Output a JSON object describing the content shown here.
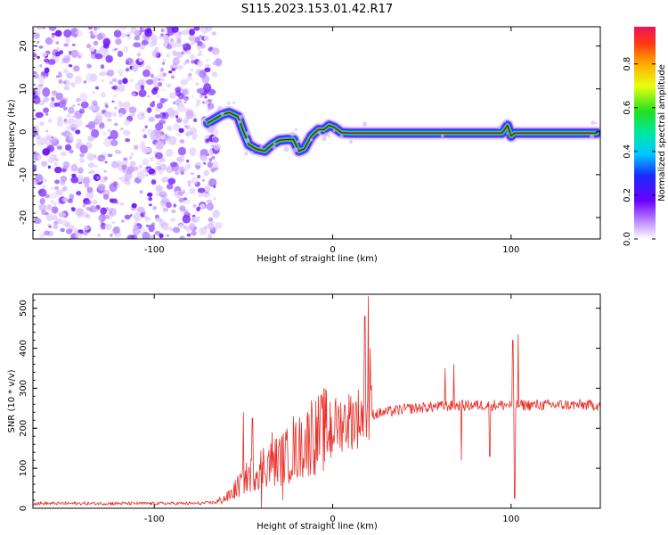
{
  "title": "S115.2023.153.01.42.R17",
  "chart_data": [
    {
      "type": "heatmap",
      "xlabel": "Height of straight line (km)",
      "ylabel": "Frequency (Hz)",
      "xlim": [
        -168,
        150
      ],
      "ylim": [
        -25,
        24.5
      ],
      "xticks": [
        "-100",
        "0",
        "100"
      ],
      "xtick_values": [
        -100,
        0,
        100
      ],
      "yticks": [
        "-20",
        "-10",
        "0",
        "10",
        "20"
      ],
      "ytick_values": [
        -20,
        -10,
        0,
        10,
        20
      ],
      "noise_region": [
        -168,
        -67
      ],
      "doppler_trace": [
        [
          -70,
          2
        ],
        [
          -62,
          4
        ],
        [
          -58,
          4.5
        ],
        [
          -53,
          3.5
        ],
        [
          -50,
          0
        ],
        [
          -47,
          -3
        ],
        [
          -43,
          -4
        ],
        [
          -38,
          -4.5
        ],
        [
          -34,
          -3
        ],
        [
          -30,
          -2
        ],
        [
          -26,
          -1.8
        ],
        [
          -22,
          -1.8
        ],
        [
          -19,
          -4.5
        ],
        [
          -16,
          -4
        ],
        [
          -12,
          -1
        ],
        [
          -8,
          0.5
        ],
        [
          -5,
          0.5
        ],
        [
          -2,
          1.5
        ],
        [
          1,
          1
        ],
        [
          5,
          -0.2
        ],
        [
          10,
          -0.3
        ],
        [
          20,
          -0.3
        ],
        [
          40,
          -0.3
        ],
        [
          60,
          -0.3
        ],
        [
          80,
          -0.3
        ],
        [
          95,
          -0.3
        ],
        [
          98,
          1.5
        ],
        [
          100,
          -1
        ],
        [
          102,
          -0.3
        ],
        [
          120,
          -0.3
        ],
        [
          148,
          -0.3
        ]
      ],
      "colorbar": {
        "label": "Normalized spectral amplitude",
        "ticks": [
          "0.0",
          "0.2",
          "0.4",
          "0.6",
          "0.8"
        ],
        "tick_values": [
          0,
          0.2,
          0.4,
          0.6,
          0.8
        ],
        "range": [
          0,
          0.97
        ]
      }
    },
    {
      "type": "line",
      "xlabel": "Height of straight line (km)",
      "ylabel": "SNR (10 * v/v)",
      "xlim": [
        -168,
        150
      ],
      "ylim": [
        0,
        535
      ],
      "xticks": [
        "-100",
        "0",
        "100"
      ],
      "xtick_values": [
        -100,
        0,
        100
      ],
      "yticks": [
        "0",
        "100",
        "200",
        "300",
        "400",
        "500"
      ],
      "ytick_values": [
        0,
        100,
        200,
        300,
        400,
        500
      ],
      "color": "#e8302a",
      "envelope": [
        [
          -168,
          12
        ],
        [
          -120,
          12
        ],
        [
          -75,
          12
        ],
        [
          -65,
          15
        ],
        [
          -58,
          30
        ],
        [
          -52,
          60
        ],
        [
          -45,
          90
        ],
        [
          -38,
          110
        ],
        [
          -30,
          120
        ],
        [
          -22,
          140
        ],
        [
          -15,
          165
        ],
        [
          -8,
          185
        ],
        [
          -2,
          200
        ],
        [
          5,
          215
        ],
        [
          12,
          225
        ],
        [
          18,
          232
        ],
        [
          22,
          235
        ],
        [
          30,
          240
        ],
        [
          40,
          248
        ],
        [
          60,
          255
        ],
        [
          80,
          258
        ],
        [
          100,
          258
        ],
        [
          120,
          258
        ],
        [
          150,
          258
        ]
      ],
      "spikes": [
        [
          -50,
          240
        ],
        [
          -45,
          225
        ],
        [
          -40,
          0
        ],
        [
          -34,
          190
        ],
        [
          -28,
          20
        ],
        [
          -22,
          230
        ],
        [
          -12,
          270
        ],
        [
          -5,
          300
        ],
        [
          18,
          480
        ],
        [
          20,
          530
        ],
        [
          21,
          400
        ],
        [
          63,
          350
        ],
        [
          68,
          360
        ],
        [
          72,
          120
        ],
        [
          88,
          130
        ],
        [
          101,
          420
        ],
        [
          102,
          25
        ],
        [
          104,
          435
        ]
      ]
    }
  ]
}
